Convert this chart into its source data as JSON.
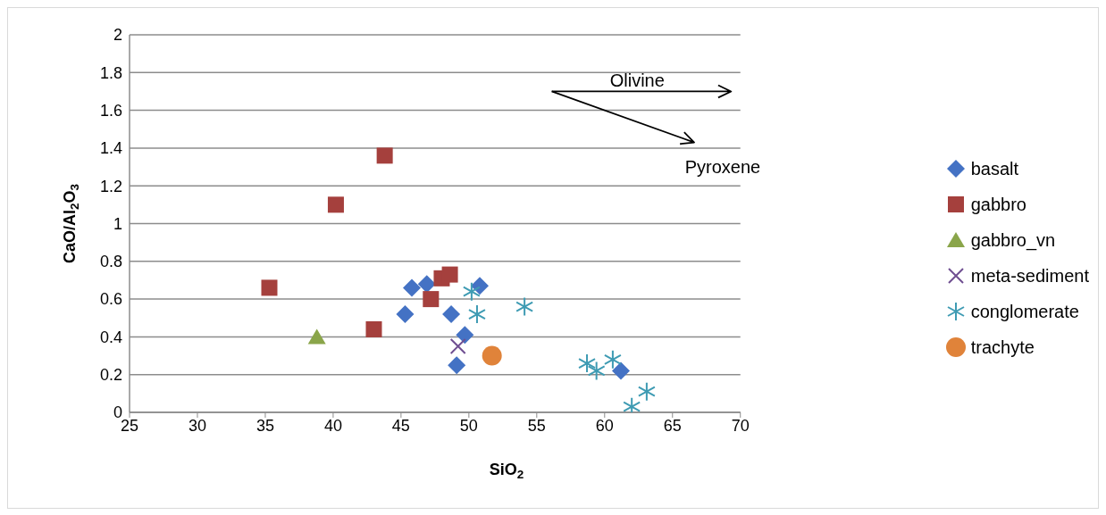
{
  "chart_data": {
    "type": "scatter",
    "xlabel": "SiO$_{2}$",
    "ylabel": "CaO/Al$_{2}$O$_{3}$",
    "xlim": [
      25,
      70
    ],
    "xticks": [
      25,
      30,
      35,
      40,
      45,
      50,
      55,
      60,
      65,
      70
    ],
    "ylim": [
      0,
      2
    ],
    "yticks": [
      0,
      0.2,
      0.4,
      0.6,
      0.8,
      1,
      1.2,
      1.4,
      1.6,
      1.8,
      2
    ],
    "grid": "y",
    "legend": "right",
    "annotations": [
      "Olivine",
      "Pyroxene"
    ],
    "series": [
      {
        "name": "basalt",
        "color": "#4472c4",
        "marker": "diamond",
        "x": [
          45.3,
          45.8,
          46.9,
          48.7,
          49.7,
          49.1,
          50.8,
          61.2
        ],
        "values": [
          0.52,
          0.66,
          0.68,
          0.52,
          0.41,
          0.25,
          0.67,
          0.22
        ]
      },
      {
        "name": "gabbro",
        "color": "#a5403d",
        "marker": "square",
        "x": [
          35.3,
          40.2,
          43.8,
          43.0,
          47.2,
          48.0,
          48.6
        ],
        "values": [
          0.66,
          1.1,
          1.36,
          0.44,
          0.6,
          0.71,
          0.73
        ]
      },
      {
        "name": "gabbro_vn",
        "color": "#8aa54a",
        "marker": "triangle",
        "x": [
          38.8
        ],
        "values": [
          0.4
        ]
      },
      {
        "name": "meta-sediment",
        "color": "#6f4e91",
        "marker": "cross",
        "x": [
          49.2
        ],
        "values": [
          0.35
        ]
      },
      {
        "name": "conglomerate",
        "color": "#3e9bb3",
        "marker": "cross",
        "x": [
          50.2,
          50.6,
          54.1,
          58.7,
          59.4,
          60.6,
          62.0,
          63.1
        ],
        "values": [
          0.64,
          0.52,
          0.56,
          0.26,
          0.22,
          0.28,
          0.03,
          0.11
        ]
      },
      {
        "name": "trachyte",
        "color": "#e0833a",
        "marker": "circle",
        "x": [
          51.7
        ],
        "values": [
          0.3
        ]
      }
    ]
  }
}
